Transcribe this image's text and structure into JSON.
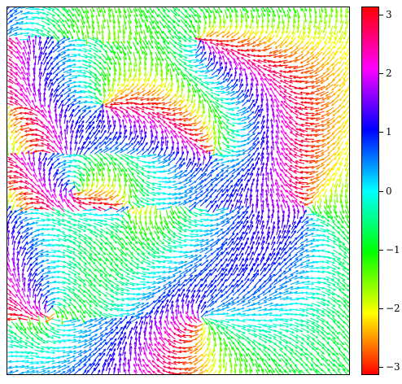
{
  "chart_data": {
    "type": "quiver",
    "title": "",
    "xlabel": "",
    "ylabel": "",
    "color_quantity": "arrow angle",
    "colormap": "hsv",
    "colorbar": {
      "range": [
        -3.14159,
        3.14159
      ],
      "ticks": [
        3,
        2,
        1,
        0,
        -1,
        -2,
        -3
      ],
      "tick_labels": [
        "3",
        "2",
        "1",
        "0",
        "−1",
        "−2",
        "−3"
      ],
      "orientation": "vertical",
      "placement": "right"
    },
    "field_description": "Dense field of short arrows colored by direction angle; several topological defects (swirls and point sources).",
    "defects": [
      {
        "x": 0.57,
        "y": 0.85,
        "type": "source"
      },
      {
        "x": 0.56,
        "y": 0.09,
        "type": "source"
      },
      {
        "x": 0.13,
        "y": 0.83,
        "type": "swirl"
      },
      {
        "x": 0.28,
        "y": 0.27,
        "type": "swirl"
      },
      {
        "x": 0.6,
        "y": 0.4,
        "type": "swirl"
      },
      {
        "x": 0.35,
        "y": 0.55,
        "type": "swirl"
      },
      {
        "x": 0.88,
        "y": 0.55,
        "type": "swirl"
      },
      {
        "x": 0.2,
        "y": 0.5,
        "type": "swirl"
      }
    ],
    "grid": false
  }
}
